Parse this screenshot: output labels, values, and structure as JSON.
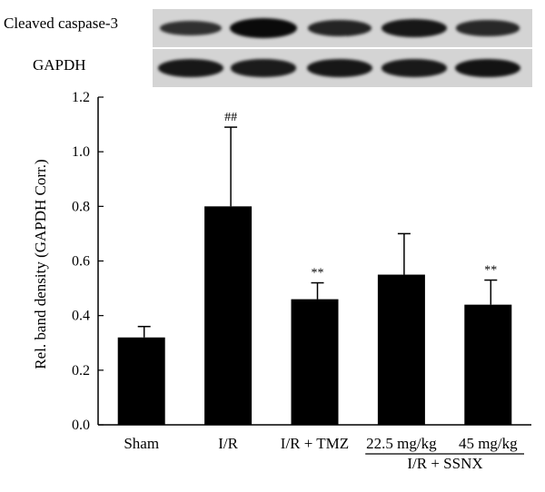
{
  "blot": {
    "rows": [
      {
        "label": "Cleaved caspase-3",
        "band_intensity": [
          0.55,
          1.0,
          0.7,
          0.85,
          0.65
        ]
      },
      {
        "label": "GAPDH",
        "band_intensity": [
          0.85,
          0.8,
          0.85,
          0.82,
          0.9
        ]
      }
    ]
  },
  "chart_data": {
    "type": "bar",
    "categories": [
      "Sham",
      "I/R",
      "I/R + TMZ",
      "22.5 mg/kg",
      "45 mg/kg"
    ],
    "group_label": "I/R + SSNX",
    "values": [
      0.32,
      0.8,
      0.46,
      0.55,
      0.44
    ],
    "errors": [
      0.04,
      0.29,
      0.06,
      0.15,
      0.09
    ],
    "annotations": [
      "",
      "##",
      "**",
      "",
      "**"
    ],
    "ylabel": "Rel. band density (GAPDH Corr.)",
    "xlabel": "",
    "ylim": [
      0,
      1.2
    ],
    "yticks": [
      "0.0",
      "0.2",
      "0.4",
      "0.6",
      "0.8",
      "1.0",
      "1.2"
    ],
    "bar_color": "#000000",
    "grid": false
  }
}
